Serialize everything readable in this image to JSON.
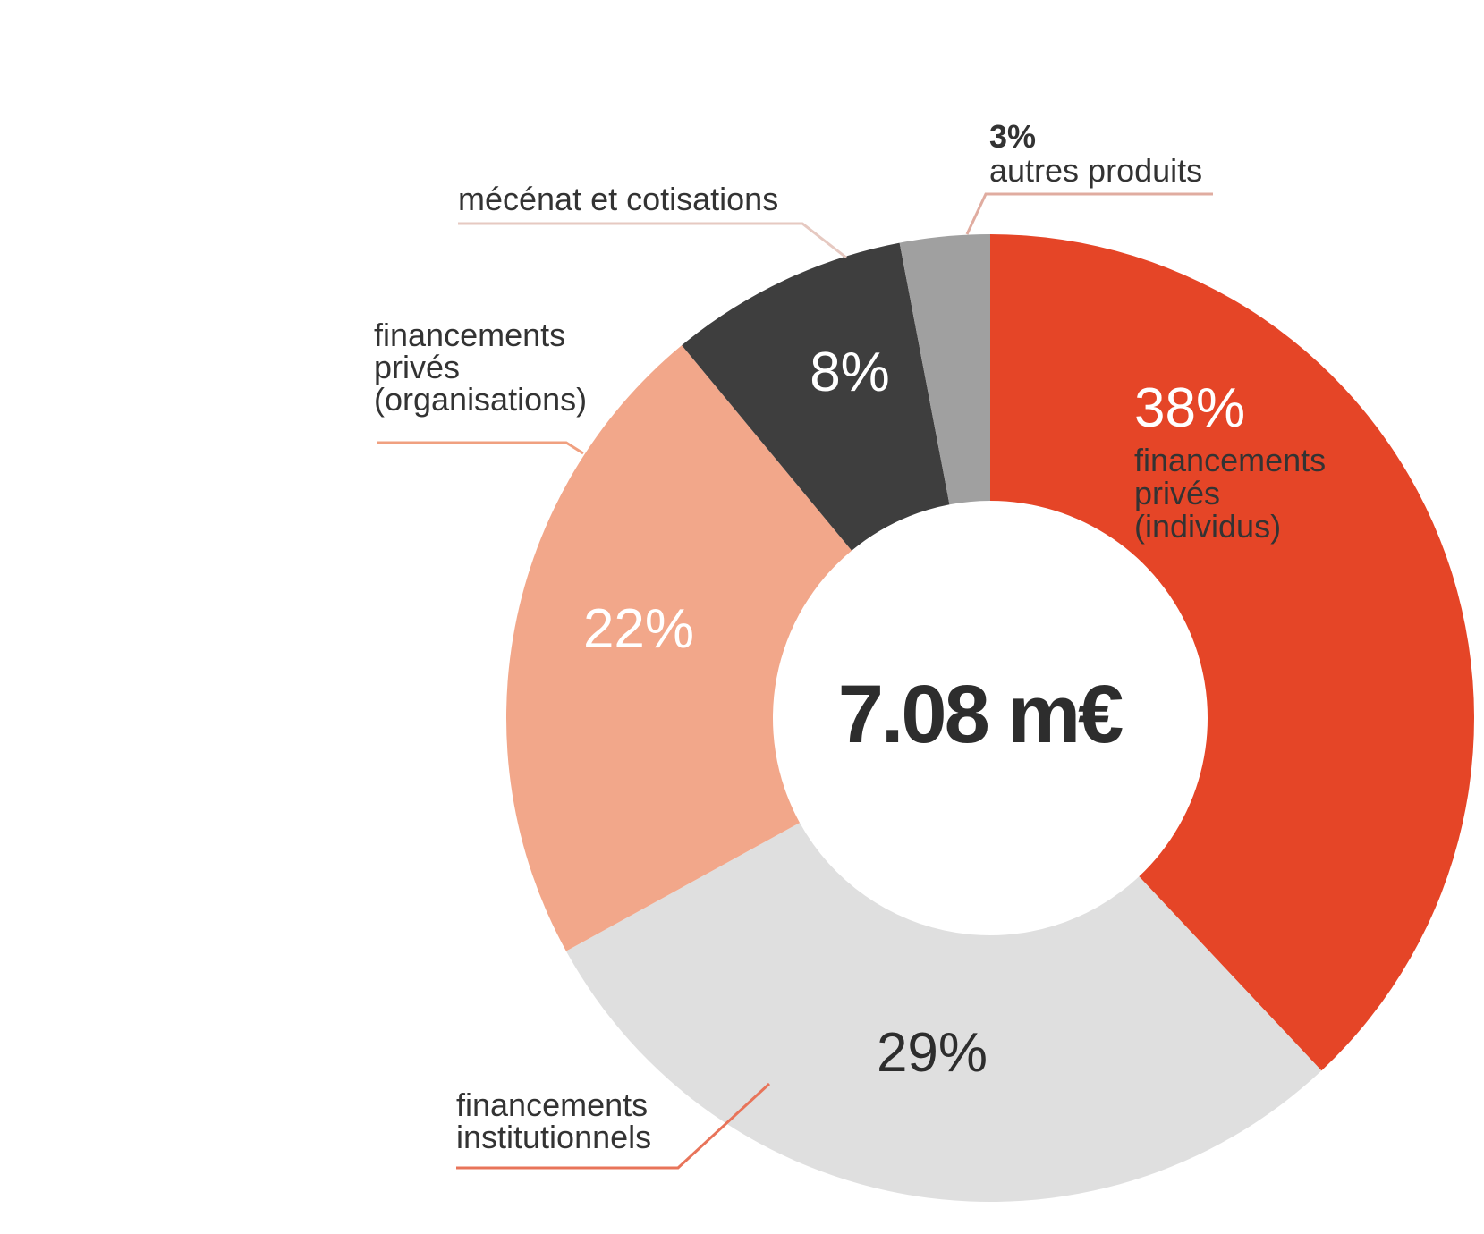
{
  "chart_data": {
    "type": "pie",
    "total_label": "7.08 m€",
    "slices": [
      {
        "value": 38,
        "percent_label": "38%",
        "label_lines": [
          "financements",
          "privés",
          "(individus)"
        ],
        "color": "#e54527",
        "percent_color": "#ffffff"
      },
      {
        "value": 29,
        "percent_label": "29%",
        "label_lines": [
          "financements",
          "institutionnels"
        ],
        "color": "#dfdfdf",
        "percent_color": "#2d2d2d"
      },
      {
        "value": 22,
        "percent_label": "22%",
        "label_lines": [
          "financements",
          "privés",
          "(organisations)"
        ],
        "color": "#f2a78a",
        "percent_color": "#ffffff"
      },
      {
        "value": 8,
        "percent_label": "8%",
        "label_lines": [
          "mécénat et cotisations"
        ],
        "color": "#3e3e3e",
        "percent_color": "#ffffff"
      },
      {
        "value": 3,
        "percent_label": "3%",
        "label_lines": [
          "autres produits"
        ],
        "color": "#a0a0a0",
        "percent_color": "#333333"
      }
    ],
    "leader_colors": {
      "individus": "#e54527",
      "institutionnels": "#e8745a",
      "organisations": "#f0a080",
      "mecenat": "#e6c9c1",
      "autres": "#e0aca0"
    }
  }
}
